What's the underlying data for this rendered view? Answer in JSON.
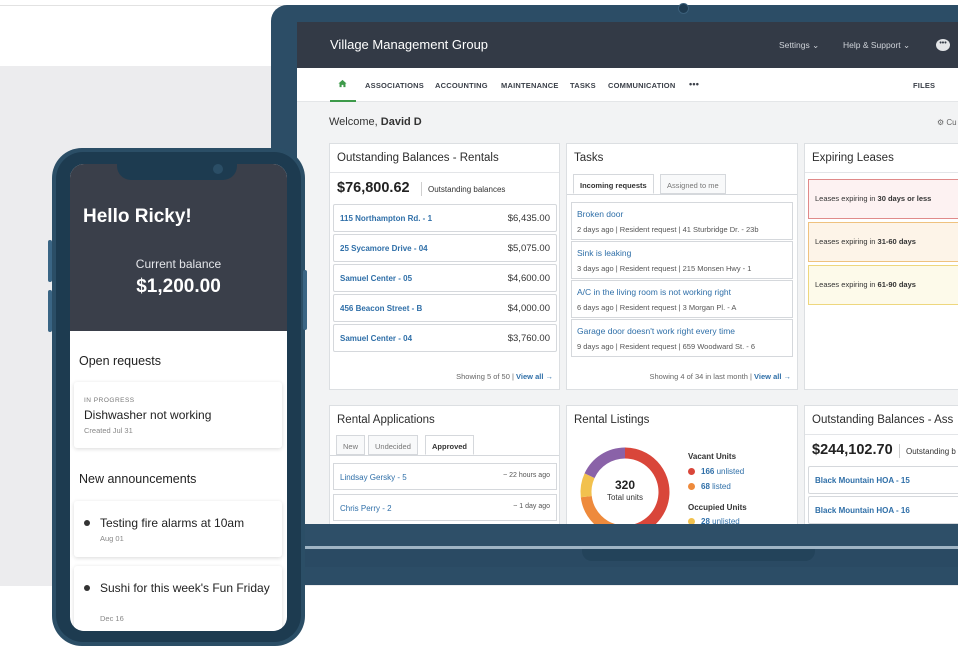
{
  "app": {
    "title": "Village Management Group",
    "settings": "Settings",
    "help": "Help & Support",
    "chat_icon": "chat-bubble-icon"
  },
  "nav": {
    "home_icon": "home-icon",
    "items": [
      "ASSOCIATIONS",
      "ACCOUNTING",
      "MAINTENANCE",
      "TASKS",
      "COMMUNICATION",
      "•••"
    ],
    "files": "FILES"
  },
  "welcome": {
    "prefix": "Welcome,",
    "name": "David D",
    "customize": "Cu"
  },
  "outstanding_rentals": {
    "title": "Outstanding Balances - Rentals",
    "total": "$76,800.62",
    "total_label": "Outstanding balances",
    "rows": [
      {
        "name": "115 Northampton Rd. - 1",
        "amount": "$6,435.00"
      },
      {
        "name": "25 Sycamore Drive - 04",
        "amount": "$5,075.00"
      },
      {
        "name": "Samuel Center - 05",
        "amount": "$4,600.00"
      },
      {
        "name": "456 Beacon Street - B",
        "amount": "$4,000.00"
      },
      {
        "name": "Samuel Center - 04",
        "amount": "$3,760.00"
      }
    ],
    "footer": "Showing 5 of 50 |",
    "view_all": "View all →"
  },
  "tasks": {
    "title": "Tasks",
    "tab_incoming": "Incoming requests",
    "tab_assigned": "Assigned to me",
    "items": [
      {
        "title": "Broken door",
        "sub": "2 days ago | Resident request | 41 Sturbridge Dr. - 23b"
      },
      {
        "title": "Sink is leaking",
        "sub": "3 days ago | Resident request | 215 Monsen Hwy - 1"
      },
      {
        "title": "A/C in the living room is not working right",
        "sub": "6 days ago | Resident request | 3 Morgan Pl. - A"
      },
      {
        "title": "Garage door doesn't work right every time",
        "sub": "9 days ago | Resident request | 659 Woodward St. - 6"
      }
    ],
    "footer": "Showing 4 of 34 in last month |",
    "view_all": "View all →"
  },
  "expiring_leases": {
    "title": "Expiring Leases",
    "items": [
      {
        "prefix": "Leases expiring in ",
        "range": "30 days or less",
        "color_bg": "#fdf2f2",
        "color_border": "#e08a8a"
      },
      {
        "prefix": "Leases expiring in ",
        "range": "31-60 days",
        "color_bg": "#fdf4e8",
        "color_border": "#efc27f"
      },
      {
        "prefix": "Leases expiring in ",
        "range": "61-90 days",
        "color_bg": "#fdfaea",
        "color_border": "#eed77e"
      }
    ]
  },
  "rental_applications": {
    "title": "Rental Applications",
    "tabs": [
      "New",
      "Undecided",
      "Approved"
    ],
    "rows": [
      {
        "name": "Lindsay Gersky - 5",
        "time": "22 hours ago"
      },
      {
        "name": "Chris Perry - 2",
        "time": "1 day ago"
      }
    ]
  },
  "rental_listings": {
    "title": "Rental Listings",
    "total": "320",
    "total_label": "Total units",
    "vacant_header": "Vacant Units",
    "vacant": [
      {
        "num": "166",
        "label": "unlisted",
        "color": "#d9463a"
      },
      {
        "num": "68",
        "label": "listed",
        "color": "#ee8a3c"
      }
    ],
    "occupied_header": "Occupied Units",
    "occupied": [
      {
        "num": "28",
        "label": "unlisted",
        "color": "#f2c14e"
      }
    ],
    "donut_segments": [
      {
        "name": "vacant unlisted",
        "value": 166,
        "color": "#d9463a"
      },
      {
        "name": "vacant listed",
        "value": 68,
        "color": "#ee8a3c"
      },
      {
        "name": "occupied unlisted",
        "value": 28,
        "color": "#f2c14e"
      },
      {
        "name": "occupied listed",
        "value": 58,
        "color": "#8a62a8"
      }
    ]
  },
  "outstanding_assoc": {
    "title": "Outstanding Balances - Ass",
    "total": "$244,102.70",
    "total_label": "Outstanding b",
    "rows": [
      "Black Mountain HOA - 15",
      "Black Mountain HOA - 16"
    ]
  },
  "phone": {
    "greeting": "Hello Ricky!",
    "balance_label": "Current balance",
    "balance": "$1,200.00",
    "open_requests": "Open requests",
    "request": {
      "status": "IN PROGRESS",
      "title": "Dishwasher not working",
      "date": "Created Jul 31"
    },
    "announcements_title": "New announcements",
    "announcements": [
      {
        "title": "Testing fire alarms at 10am",
        "date": "Aug 01"
      },
      {
        "title": "Sushi for this week's Fun Friday",
        "date": "Dec 16"
      }
    ]
  }
}
